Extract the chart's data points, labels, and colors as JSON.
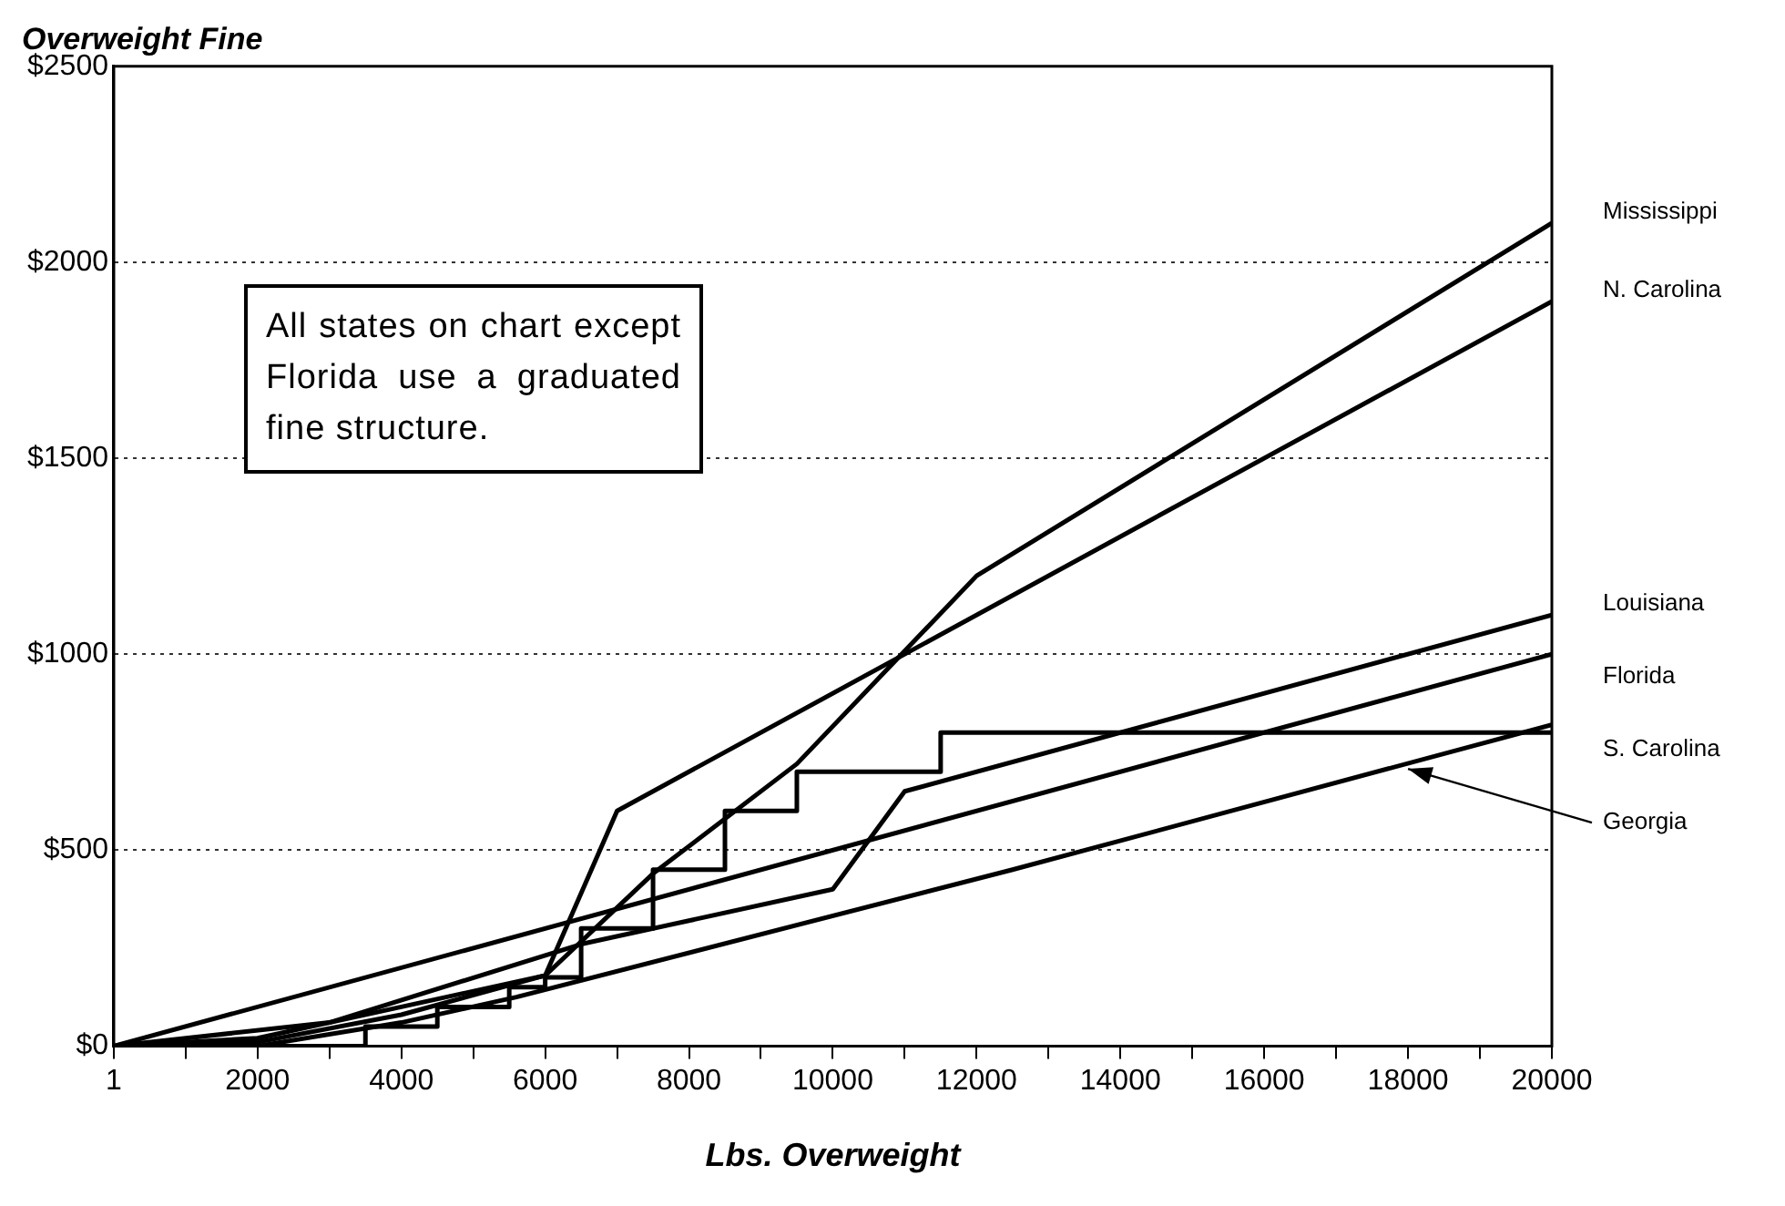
{
  "chart_data": {
    "type": "line",
    "title": "Overweight Fine",
    "xlabel": "Lbs. Overweight",
    "annotations": [
      "All states on chart except Florida use a graduated fine structure."
    ],
    "xlim": [
      1,
      20000
    ],
    "xticks": [
      1,
      {
        "value": 1000,
        "label": null
      },
      2000,
      {
        "value": 3000,
        "label": null
      },
      4000,
      {
        "value": 5000,
        "label": null
      },
      6000,
      {
        "value": 7000,
        "label": null
      },
      8000,
      {
        "value": 9000,
        "label": null
      },
      10000,
      {
        "value": 11000,
        "label": null
      },
      12000,
      {
        "value": 13000,
        "label": null
      },
      14000,
      {
        "value": 15000,
        "label": null
      },
      16000,
      {
        "value": 17000,
        "label": null
      },
      18000,
      {
        "value": 19000,
        "label": null
      },
      20000
    ],
    "ylim": [
      0,
      2500
    ],
    "yticks": [
      {
        "value": 0,
        "label": "$0"
      },
      {
        "value": 500,
        "label": "$500"
      },
      {
        "value": 1000,
        "label": "$1000"
      },
      {
        "value": 1500,
        "label": "$1500"
      },
      {
        "value": 2000,
        "label": "$2000"
      },
      {
        "value": 2500,
        "label": "$2500"
      }
    ],
    "grid": "y",
    "legend": false,
    "marker": "none",
    "line_style": "solid",
    "series": [
      {
        "name": "Mississippi",
        "color": "#000000",
        "x": [
          1,
          2000,
          4000,
          6000,
          7500,
          9500,
          12000,
          20000
        ],
        "values": [
          0,
          10,
          80,
          180,
          440,
          720,
          1200,
          2100
        ]
      },
      {
        "name": "N. Carolina",
        "color": "#000000",
        "x": [
          1,
          2000,
          4000,
          6000,
          7000,
          20000
        ],
        "values": [
          0,
          20,
          100,
          180,
          600,
          1900
        ]
      },
      {
        "name": "Louisiana",
        "color": "#000000",
        "x": [
          1,
          3000,
          6500,
          10000,
          11000,
          20000
        ],
        "values": [
          0,
          60,
          260,
          400,
          650,
          1100
        ]
      },
      {
        "name": "Florida",
        "color": "#000000",
        "x": [
          1,
          20000
        ],
        "values": [
          0,
          1000
        ]
      },
      {
        "name": "S. Carolina",
        "type": "step",
        "color": "#000000",
        "x": [
          1,
          3500,
          4500,
          5500,
          6000,
          6500,
          7500,
          8500,
          9500,
          11500,
          20000
        ],
        "values": [
          0,
          50,
          100,
          150,
          175,
          300,
          450,
          600,
          700,
          800,
          800
        ]
      },
      {
        "name": "Georgia",
        "color": "#000000",
        "x": [
          1,
          2000,
          4000,
          5600,
          12500,
          20000
        ],
        "values": [
          0,
          0,
          60,
          125,
          450,
          820
        ]
      }
    ]
  }
}
